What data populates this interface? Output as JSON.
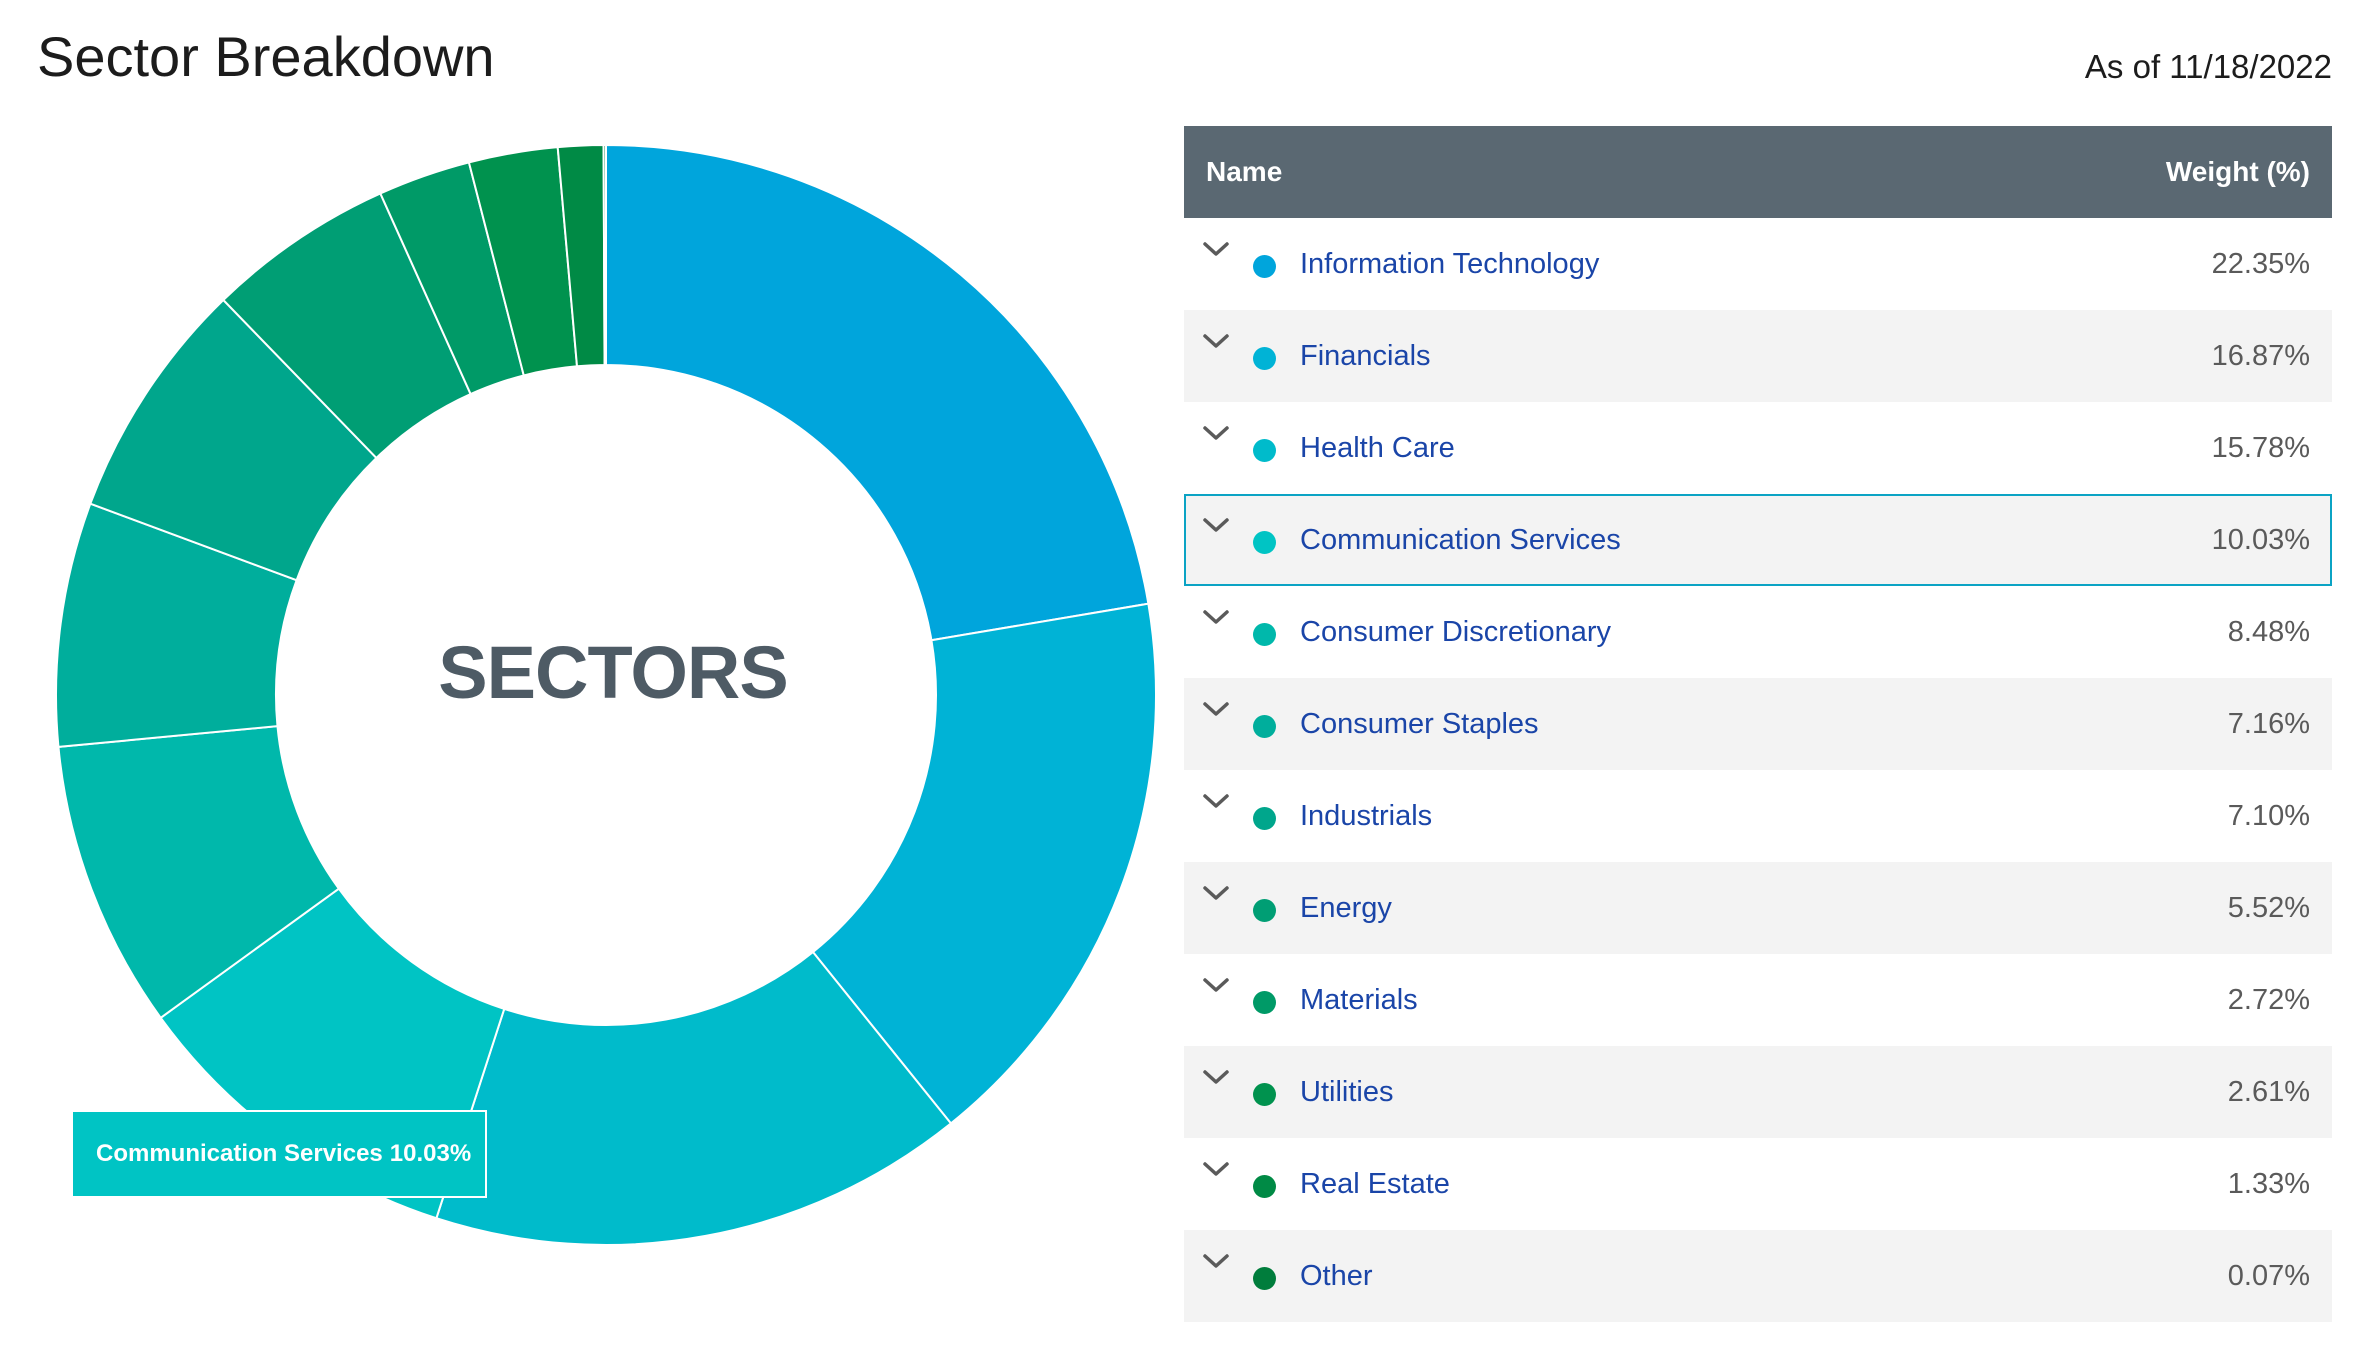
{
  "title": "Sector Breakdown",
  "as_of": "As of 11/18/2022",
  "center_label": "SECTORS",
  "tooltip": {
    "name": "Communication Services",
    "value": "10.03%",
    "color": "#00c4c4"
  },
  "table": {
    "headers": {
      "name": "Name",
      "weight": "Weight (%)"
    },
    "header_color": "#5a6872",
    "rows": [
      {
        "name": "Information Technology",
        "weight": "22.35%",
        "color": "#00a5dc"
      },
      {
        "name": "Financials",
        "weight": "16.87%",
        "color": "#00b3d6"
      },
      {
        "name": "Health Care",
        "weight": "15.78%",
        "color": "#00bbcb"
      },
      {
        "name": "Communication Services",
        "weight": "10.03%",
        "color": "#00c4c4"
      },
      {
        "name": "Consumer Discretionary",
        "weight": "8.48%",
        "color": "#00b8ab"
      },
      {
        "name": "Consumer Staples",
        "weight": "7.16%",
        "color": "#00ae9c"
      },
      {
        "name": "Industrials",
        "weight": "7.10%",
        "color": "#00a68c"
      },
      {
        "name": "Energy",
        "weight": "5.52%",
        "color": "#009e74"
      },
      {
        "name": "Materials",
        "weight": "2.72%",
        "color": "#009a67"
      },
      {
        "name": "Utilities",
        "weight": "2.61%",
        "color": "#00924e"
      },
      {
        "name": "Real Estate",
        "weight": "1.33%",
        "color": "#008a45"
      },
      {
        "name": "Other",
        "weight": "0.07%",
        "color": "#007d3c"
      }
    ]
  },
  "chart_data": {
    "type": "pie",
    "categories": [
      "Information Technology",
      "Financials",
      "Health Care",
      "Communication Services",
      "Consumer Discretionary",
      "Consumer Staples",
      "Industrials",
      "Energy",
      "Materials",
      "Utilities",
      "Real Estate",
      "Other"
    ],
    "values": [
      22.35,
      16.87,
      15.78,
      10.03,
      8.48,
      7.16,
      7.1,
      5.52,
      2.72,
      2.61,
      1.33,
      0.07
    ],
    "colors": [
      "#00a5dc",
      "#00b3d6",
      "#00bbcb",
      "#00c4c4",
      "#00b8ab",
      "#00ae9c",
      "#00a68c",
      "#009e74",
      "#009a67",
      "#00924e",
      "#008a45",
      "#007d3c"
    ],
    "donut": true,
    "start_angle": "top",
    "direction": "clockwise",
    "highlighted": "Communication Services"
  }
}
